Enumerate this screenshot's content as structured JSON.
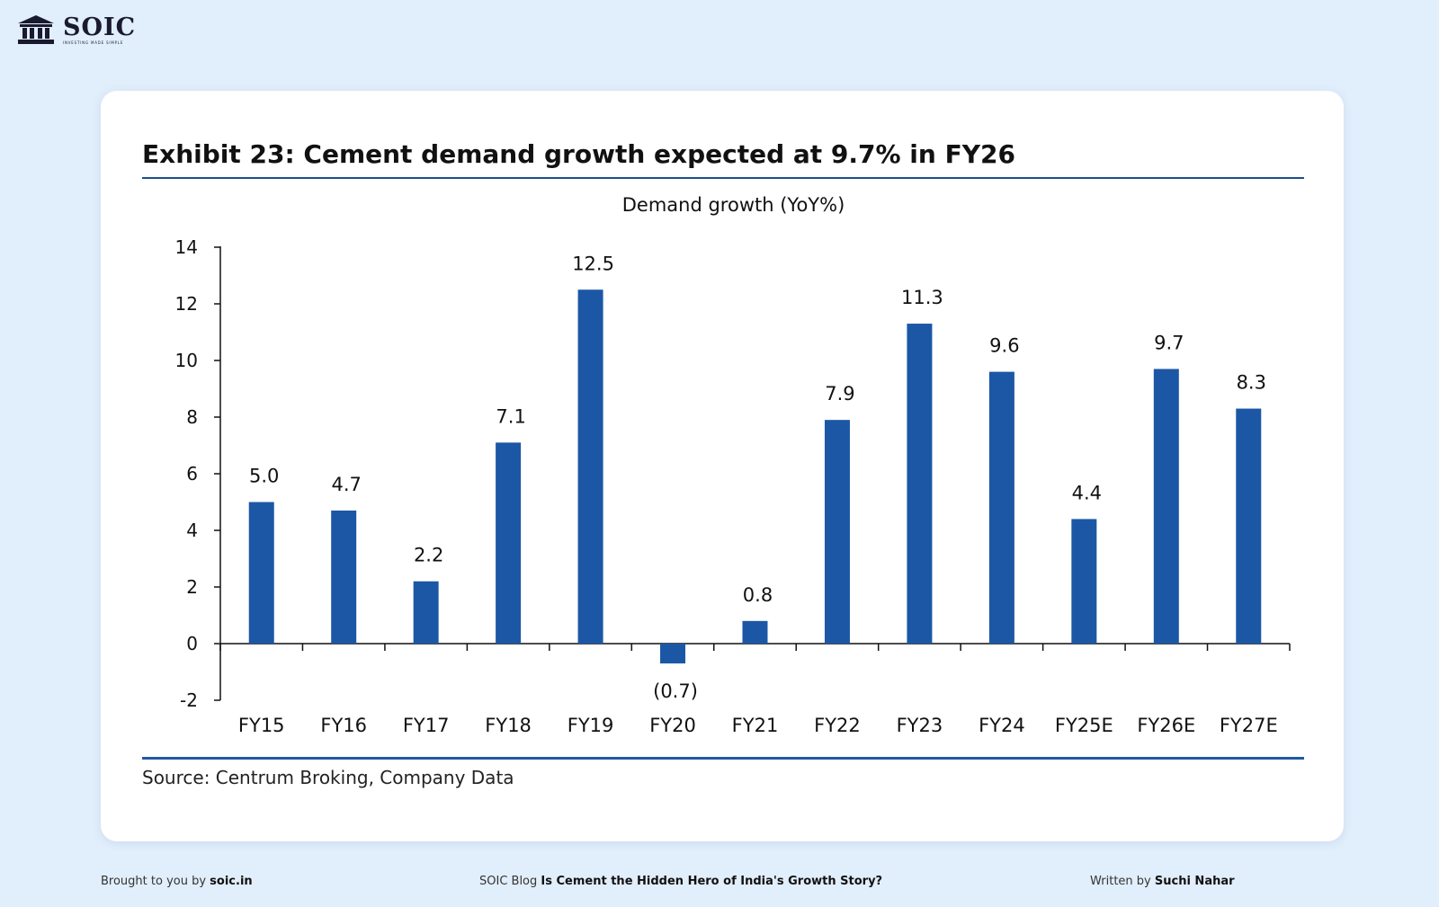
{
  "brand": {
    "name": "SOIC",
    "tagline": "INVESTING MADE SIMPLE",
    "icon": "bank-building-icon"
  },
  "exhibit": {
    "title": "Exhibit 23: Cement demand growth expected at 9.7% in FY26",
    "source": "Source: Centrum Broking, Company Data"
  },
  "chart_data": {
    "type": "bar",
    "title": "Demand growth (YoY%)",
    "xlabel": "",
    "ylabel": "",
    "categories": [
      "FY15",
      "FY16",
      "FY17",
      "FY18",
      "FY19",
      "FY20",
      "FY21",
      "FY22",
      "FY23",
      "FY24",
      "FY25E",
      "FY26E",
      "FY27E"
    ],
    "values": [
      5.0,
      4.7,
      2.2,
      7.1,
      12.5,
      -0.7,
      0.8,
      7.9,
      11.3,
      9.6,
      4.4,
      9.7,
      8.3
    ],
    "data_labels": [
      "5.0",
      "4.7",
      "2.2",
      "7.1",
      "12.5",
      "(0.7)",
      "0.8",
      "7.9",
      "11.3",
      "9.6",
      "4.4",
      "9.7",
      "8.3"
    ],
    "ylim": [
      -2,
      14
    ],
    "yticks": [
      14,
      12,
      10,
      8,
      6,
      4,
      2,
      0,
      -2
    ],
    "grid": false,
    "legend": "none",
    "bar_color": "#1c57a5"
  },
  "footer": {
    "left_prefix": "Brought to you by ",
    "left_bold": "soic.in",
    "center_prefix": "SOIC Blog ",
    "center_bold": "Is Cement the Hidden Hero of India's Growth Story?",
    "right_prefix": "Written by ",
    "right_bold": "Suchi Nahar"
  }
}
